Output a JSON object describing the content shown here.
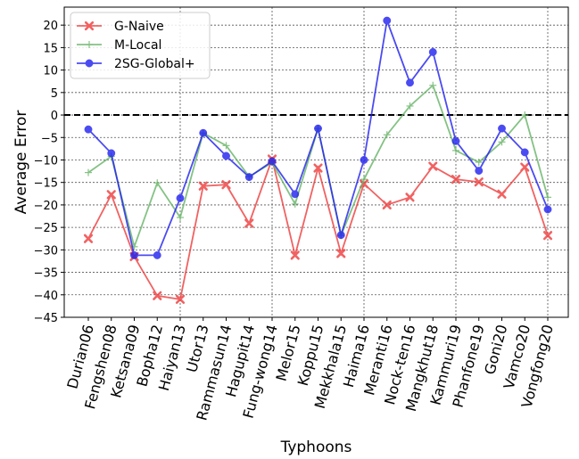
{
  "chart_data": {
    "type": "line",
    "title": "",
    "xlabel": "Typhoons",
    "ylabel": "Average Error",
    "ylim": [
      -45,
      24
    ],
    "yticks": [
      -45,
      -40,
      -35,
      -30,
      -25,
      -20,
      -15,
      -10,
      -5,
      0,
      5,
      10,
      15,
      20
    ],
    "reference_line": {
      "y": 0,
      "style": "dashed",
      "color": "#000000"
    },
    "grid": true,
    "legend_position": "top-left",
    "categories": [
      "Durian06",
      "Fengshen08",
      "Ketsana09",
      "Bopha12",
      "Haiyan13",
      "Utor13",
      "Rammasun14",
      "Hagupit14",
      "Fung-wong14",
      "Melor15",
      "Koppu15",
      "Mekkhala15",
      "Haima16",
      "Meranti16",
      "Nock-ten16",
      "Mangkhut18",
      "Kammuri19",
      "Phanfone19",
      "Goni20",
      "Vamco20",
      "Vongfong20"
    ],
    "series": [
      {
        "name": "G-Naive",
        "color": "#ee3b3b",
        "marker": "x",
        "values": [
          -27.5,
          -17.7,
          -31.5,
          -40.2,
          -41.0,
          -15.8,
          -15.5,
          -24.1,
          -9.8,
          -31.2,
          -11.8,
          -30.8,
          -15.3,
          -20.0,
          -18.3,
          -11.4,
          -14.3,
          -14.9,
          -17.6,
          -11.6,
          -26.8
        ]
      },
      {
        "name": "M-Local",
        "color": "#66b366",
        "marker": "+",
        "values": [
          -12.8,
          -9.2,
          -29.3,
          -15.1,
          -22.8,
          -4.0,
          -6.8,
          -13.7,
          -10.6,
          -19.8,
          -3.0,
          -26.8,
          -14.3,
          -4.4,
          2.0,
          6.6,
          -7.9,
          -10.5,
          -6.0,
          0.0,
          -18.3
        ]
      },
      {
        "name": "2SG-Global+",
        "color": "#1f1fef",
        "marker": "o",
        "values": [
          -3.2,
          -8.5,
          -31.2,
          -31.2,
          -18.5,
          -4.0,
          -9.1,
          -13.8,
          -10.3,
          -17.6,
          -3.0,
          -26.7,
          -10.0,
          21.0,
          7.2,
          14.0,
          -5.8,
          -12.4,
          -3.0,
          -8.3,
          -21.0
        ]
      }
    ]
  }
}
